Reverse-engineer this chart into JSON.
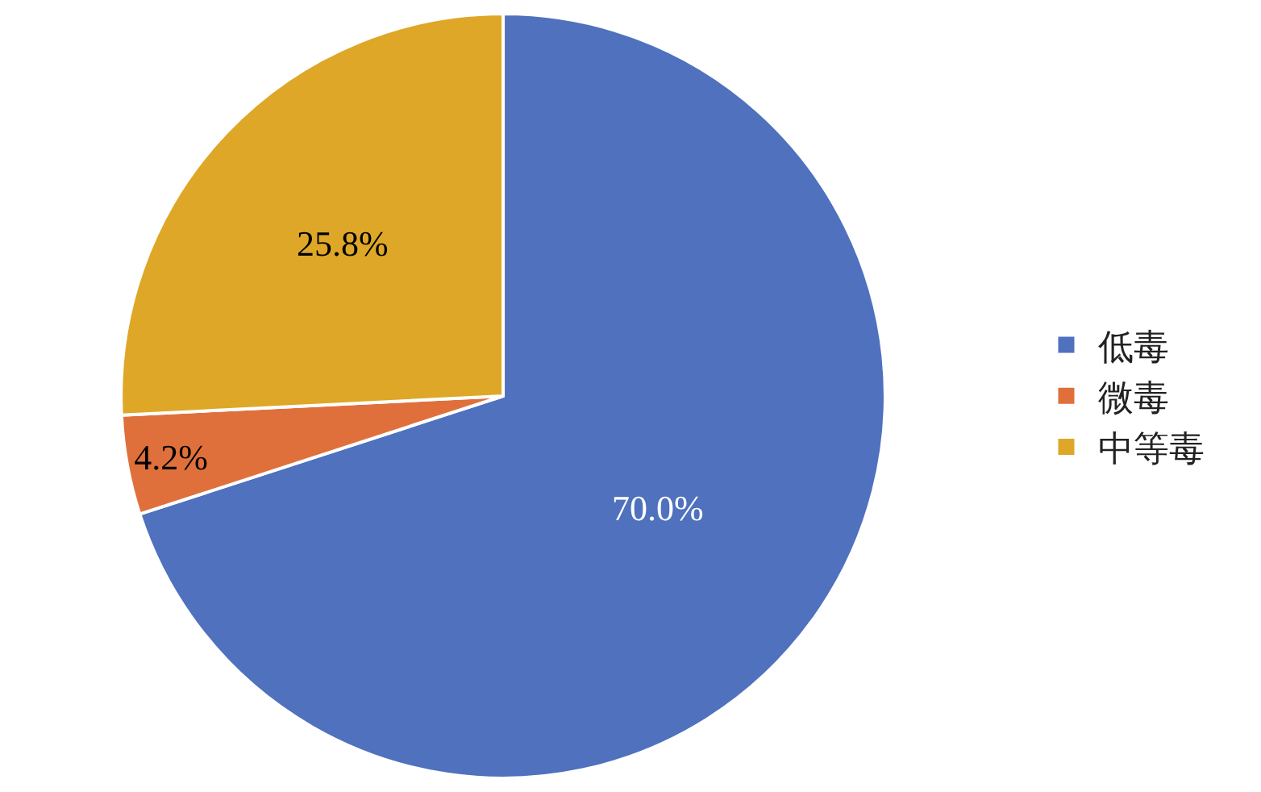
{
  "chart_data": {
    "type": "pie",
    "categories": [
      "低毒",
      "微毒",
      "中等毒"
    ],
    "values": [
      70.0,
      4.2,
      25.8
    ],
    "colors": [
      "#4f71be",
      "#e0703b",
      "#dea727"
    ],
    "value_labels": [
      "70.0%",
      "4.2%",
      "25.8%"
    ],
    "legend": "right"
  }
}
